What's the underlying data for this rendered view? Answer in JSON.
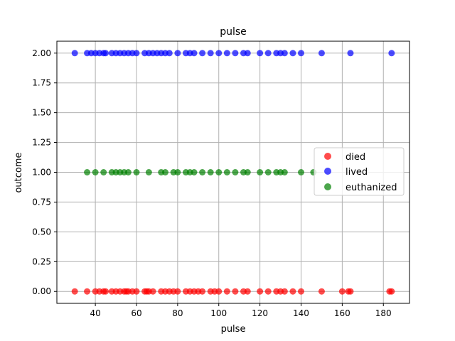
{
  "chart_data": {
    "type": "scatter",
    "title": "pulse",
    "xlabel": "pulse",
    "ylabel": "outcome",
    "xlim": [
      21.3,
      192.7
    ],
    "ylim": [
      -0.1,
      2.1
    ],
    "xticks": [
      40,
      60,
      80,
      100,
      120,
      140,
      160,
      180
    ],
    "yticks": [
      0.0,
      0.25,
      0.5,
      0.75,
      1.0,
      1.25,
      1.5,
      1.75,
      2.0
    ],
    "ytick_labels": [
      "0.00",
      "0.25",
      "0.50",
      "0.75",
      "1.00",
      "1.25",
      "1.50",
      "1.75",
      "2.00"
    ],
    "grid": true,
    "legend_position": "right",
    "series": [
      {
        "name": "died",
        "color": "#ff0000",
        "y": 0,
        "x": [
          30,
          36,
          40,
          42,
          44,
          45,
          48,
          50,
          52,
          54,
          55,
          56,
          58,
          60,
          64,
          65,
          66,
          68,
          72,
          74,
          76,
          78,
          80,
          84,
          86,
          88,
          90,
          92,
          96,
          98,
          100,
          104,
          108,
          112,
          114,
          120,
          124,
          128,
          130,
          132,
          136,
          140,
          150,
          160,
          163,
          164,
          183,
          184
        ]
      },
      {
        "name": "lived",
        "color": "#0000ff",
        "y": 2,
        "x": [
          30,
          36,
          38,
          40,
          42,
          44,
          45,
          48,
          50,
          52,
          54,
          56,
          58,
          60,
          64,
          66,
          68,
          70,
          72,
          74,
          76,
          80,
          84,
          86,
          88,
          92,
          96,
          100,
          104,
          108,
          112,
          114,
          120,
          124,
          128,
          130,
          132,
          136,
          140,
          150,
          164,
          184
        ]
      },
      {
        "name": "euthanized",
        "color": "#008000",
        "y": 1,
        "x": [
          36,
          40,
          44,
          48,
          50,
          52,
          54,
          56,
          60,
          66,
          72,
          74,
          78,
          80,
          84,
          86,
          88,
          92,
          96,
          100,
          104,
          108,
          112,
          114,
          120,
          124,
          128,
          130,
          132,
          140,
          146
        ]
      }
    ]
  }
}
